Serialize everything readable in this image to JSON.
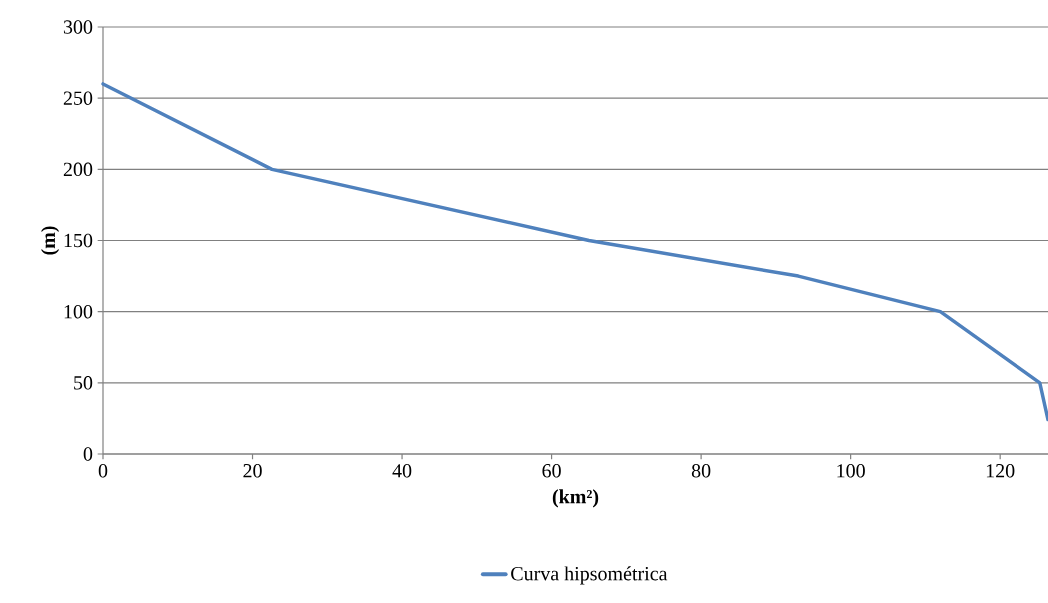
{
  "chart_data": {
    "type": "line",
    "xlabel": "(km²)",
    "ylabel": "(m)",
    "x": [
      0,
      22.6,
      65,
      93,
      112,
      125.3,
      126.4
    ],
    "series": [
      {
        "name": "Curva hipsométrica",
        "color": "#4f81bd",
        "values": [
          260,
          200,
          150,
          125,
          100,
          50,
          24
        ]
      }
    ],
    "xlim": [
      0,
      126.4
    ],
    "ylim": [
      0,
      300
    ],
    "xticks": [
      0,
      20,
      40,
      60,
      80,
      100,
      120
    ],
    "yticks": [
      0,
      50,
      100,
      150,
      200,
      250,
      300
    ],
    "grid": "y",
    "legend": "bottom",
    "marker": "none",
    "line_style": "solid"
  }
}
